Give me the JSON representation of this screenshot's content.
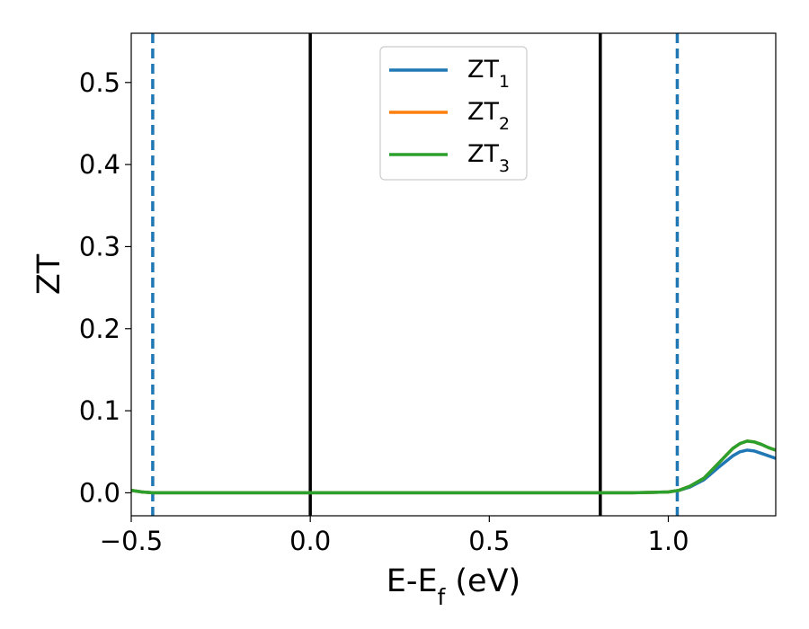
{
  "chart_data": {
    "type": "line",
    "title": "",
    "xlabel": {
      "base": "E-E",
      "sub": "f",
      "suffix": " (eV)"
    },
    "ylabel": "ZT",
    "xlim": [
      -0.5,
      1.3
    ],
    "ylim": [
      -0.028,
      0.56
    ],
    "xticks": [
      -0.5,
      0.0,
      0.5,
      1.0
    ],
    "xtick_labels": [
      "−0.5",
      "0.0",
      "0.5",
      "1.0"
    ],
    "yticks": [
      0.0,
      0.1,
      0.2,
      0.3,
      0.4,
      0.5
    ],
    "ytick_labels": [
      "0.0",
      "0.1",
      "0.2",
      "0.3",
      "0.4",
      "0.5"
    ],
    "grid": false,
    "legend_position": "top-center",
    "series": [
      {
        "name": "ZT1",
        "name_base": "ZT",
        "name_sub": "1",
        "color": "#1f77b4",
        "x": [
          -0.5,
          -0.47,
          -0.44,
          -0.4,
          0.0,
          0.5,
          0.8,
          0.9,
          0.95,
          1.0,
          1.03,
          1.06,
          1.1,
          1.14,
          1.18,
          1.2,
          1.22,
          1.24,
          1.26,
          1.28,
          1.3
        ],
        "y": [
          0.003,
          0.001,
          0.0,
          0.0,
          0.0,
          0.0,
          0.0,
          0.0,
          0.0005,
          0.001,
          0.003,
          0.007,
          0.016,
          0.031,
          0.045,
          0.05,
          0.052,
          0.051,
          0.048,
          0.045,
          0.042
        ]
      },
      {
        "name": "ZT2",
        "name_base": "ZT",
        "name_sub": "2",
        "color": "#ff7f0e",
        "x": [
          -0.5,
          -0.47,
          -0.44,
          -0.4,
          0.0,
          0.5,
          0.8,
          0.9,
          0.95,
          1.0,
          1.03,
          1.06,
          1.1,
          1.14,
          1.18,
          1.2,
          1.22,
          1.24,
          1.26,
          1.28,
          1.3
        ],
        "y": [
          0.003,
          0.001,
          0.0,
          0.0,
          0.0,
          0.0,
          0.0,
          0.0,
          0.0005,
          0.001,
          0.003,
          0.008,
          0.018,
          0.036,
          0.054,
          0.06,
          0.063,
          0.062,
          0.059,
          0.055,
          0.052
        ]
      },
      {
        "name": "ZT3",
        "name_base": "ZT",
        "name_sub": "3",
        "color": "#2ca02c",
        "x": [
          -0.5,
          -0.47,
          -0.44,
          -0.4,
          0.0,
          0.5,
          0.8,
          0.9,
          0.95,
          1.0,
          1.03,
          1.06,
          1.1,
          1.14,
          1.18,
          1.2,
          1.22,
          1.24,
          1.26,
          1.28,
          1.3
        ],
        "y": [
          0.003,
          0.001,
          0.0,
          0.0,
          0.0,
          0.0,
          0.0,
          0.0,
          0.0005,
          0.001,
          0.003,
          0.008,
          0.018,
          0.036,
          0.054,
          0.06,
          0.063,
          0.062,
          0.059,
          0.055,
          0.052
        ]
      }
    ],
    "vlines": [
      {
        "x": -0.44,
        "style": "dashed",
        "color": "#1f77b4"
      },
      {
        "x": 0.0,
        "style": "solid",
        "color": "#000000"
      },
      {
        "x": 0.81,
        "style": "solid",
        "color": "#000000"
      },
      {
        "x": 1.025,
        "style": "dashed",
        "color": "#1f77b4"
      }
    ]
  }
}
